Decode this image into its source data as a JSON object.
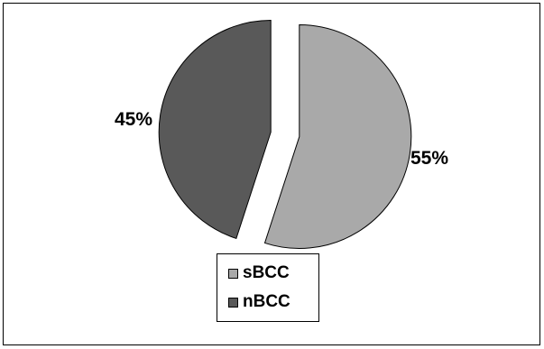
{
  "chart_data": {
    "type": "pie",
    "title": "",
    "slices": [
      {
        "name": "sBCC",
        "value": 55,
        "label": "55%",
        "color": "#a9a9a9"
      },
      {
        "name": "nBCC",
        "value": 45,
        "label": "45%",
        "color": "#595959"
      }
    ],
    "legend": {
      "placement": "bottom",
      "entries": [
        "sBCC",
        "nBCC"
      ]
    },
    "exploded": true,
    "start_angle": "12 o'clock, clockwise"
  }
}
